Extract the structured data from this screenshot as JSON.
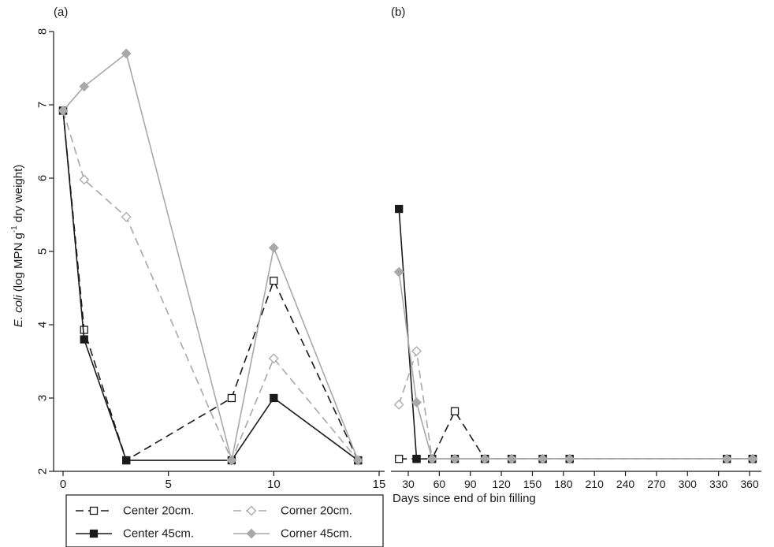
{
  "chart_data": [
    {
      "type": "line",
      "panel_label": "(a)",
      "ylabel_italic": "E. coli",
      "ylabel_rest": " (log MPN g",
      "ylabel_sup": "-1",
      "ylabel_end": " dry weight)",
      "xlabel": "",
      "xlim": [
        0,
        15
      ],
      "ylim": [
        2,
        8
      ],
      "xticks": [
        "0",
        "5",
        "10",
        "15"
      ],
      "yticks": [
        "2",
        "3",
        "4",
        "5",
        "6",
        "7",
        "8"
      ],
      "grid": false,
      "series": [
        {
          "name": "Center 20cm.",
          "x": [
            0,
            1,
            3,
            8,
            10,
            14
          ],
          "y": [
            6.92,
            3.93,
            2.15,
            3.0,
            4.6,
            2.15
          ],
          "color": "#1a1a1a",
          "dash": "10,6",
          "marker": "square-open"
        },
        {
          "name": "Center 45cm.",
          "x": [
            0,
            1,
            3,
            8,
            10,
            14
          ],
          "y": [
            6.92,
            3.8,
            2.15,
            2.15,
            3.0,
            2.15
          ],
          "color": "#1a1a1a",
          "dash": "",
          "marker": "square-filled"
        },
        {
          "name": "Corner 20cm.",
          "x": [
            0,
            1,
            3,
            8,
            10,
            14
          ],
          "y": [
            6.92,
            5.98,
            5.47,
            2.15,
            3.54,
            2.15
          ],
          "color": "#a8a8a8",
          "dash": "10,6",
          "marker": "diamond-open"
        },
        {
          "name": "Corner 45cm.",
          "x": [
            0,
            1,
            3,
            8,
            10,
            14
          ],
          "y": [
            6.92,
            7.25,
            7.7,
            2.15,
            5.05,
            2.15
          ],
          "color": "#a8a8a8",
          "dash": "",
          "marker": "diamond-filled"
        }
      ]
    },
    {
      "type": "line",
      "panel_label": "(b)",
      "xlabel": "Days since end of bin filling",
      "xlim": [
        15,
        365
      ],
      "ylim": [
        2,
        8
      ],
      "xticks": [
        "30",
        "60",
        "90",
        "120",
        "150",
        "180",
        "210",
        "240",
        "270",
        "300",
        "330",
        "360"
      ],
      "grid": false,
      "series": [
        {
          "name": "Center 20cm.",
          "x": [
            21,
            38,
            53,
            75,
            104,
            130,
            160,
            186,
            338,
            363
          ],
          "y": [
            2.17,
            2.17,
            2.17,
            2.82,
            2.17,
            2.17,
            2.17,
            2.17,
            2.17,
            2.17
          ],
          "color": "#1a1a1a",
          "dash": "10,6",
          "marker": "square-open"
        },
        {
          "name": "Center 45cm.",
          "x": [
            21,
            38,
            53,
            75,
            104,
            130,
            160,
            186,
            338,
            363
          ],
          "y": [
            5.58,
            2.17,
            2.17,
            2.17,
            2.17,
            2.17,
            2.17,
            2.17,
            2.17,
            2.17
          ],
          "color": "#1a1a1a",
          "dash": "",
          "marker": "square-filled"
        },
        {
          "name": "Corner 20cm.",
          "x": [
            21,
            38,
            53,
            75,
            104,
            130,
            160,
            186,
            338,
            363
          ],
          "y": [
            2.91,
            3.64,
            2.17,
            2.17,
            2.17,
            2.17,
            2.17,
            2.17,
            2.17,
            2.17
          ],
          "color": "#a8a8a8",
          "dash": "10,6",
          "marker": "diamond-open"
        },
        {
          "name": "Corner 45cm.",
          "x": [
            21,
            38,
            53,
            75,
            104,
            130,
            160,
            186,
            338,
            363
          ],
          "y": [
            4.72,
            2.94,
            2.17,
            2.17,
            2.17,
            2.17,
            2.17,
            2.17,
            2.17,
            2.17
          ],
          "color": "#a8a8a8",
          "dash": "",
          "marker": "diamond-filled"
        }
      ]
    }
  ],
  "legend": {
    "placement": "bottom-left",
    "entries": [
      "Center 20cm.",
      "Corner 20cm.",
      "Center 45cm.",
      "Corner 45cm."
    ]
  }
}
